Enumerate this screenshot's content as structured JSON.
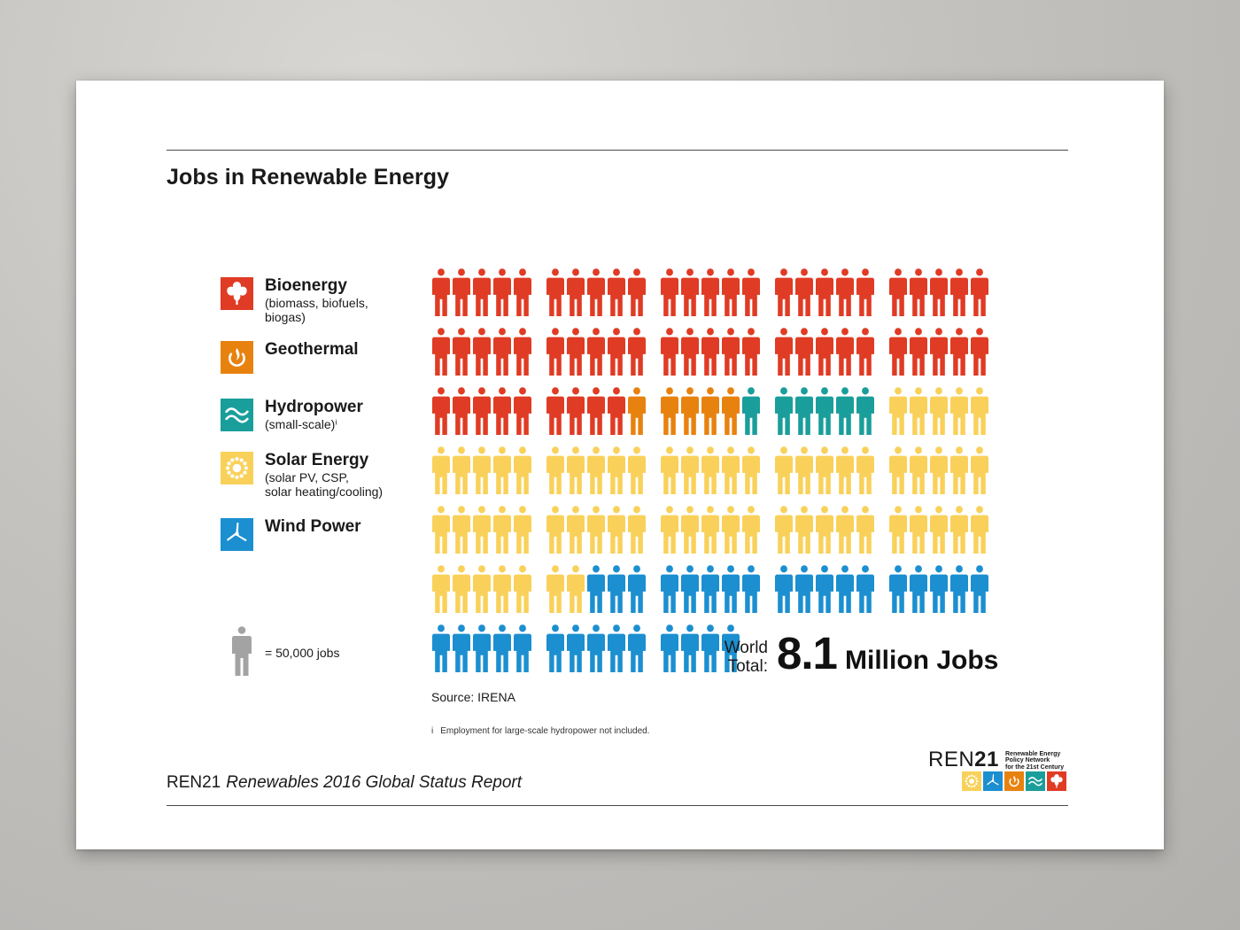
{
  "title": "Jobs in Renewable Energy",
  "legend": [
    {
      "name": "Bioenergy",
      "sub": "(biomass, biofuels,\nbiogas)",
      "color": "#e03b24",
      "icon": "leaf-icon"
    },
    {
      "name": "Geothermal",
      "sub": "",
      "color": "#e8820f",
      "icon": "geothermal-icon"
    },
    {
      "name": "Hydropower",
      "sub": "(small-scale)ⁱ",
      "color": "#1a9e9b",
      "icon": "waves-icon"
    },
    {
      "name": "Solar Energy",
      "sub": "(solar PV, CSP,\nsolar heating/cooling)",
      "color": "#f9d15a",
      "icon": "sun-icon"
    },
    {
      "name": "Wind Power",
      "sub": "",
      "color": "#1b8fd0",
      "icon": "turbine-icon"
    }
  ],
  "scale": {
    "label": "= 50,000 jobs",
    "color": "#a3a3a3"
  },
  "chart_data": {
    "type": "pictogram",
    "unit_jobs": 50000,
    "categories": [
      "Bioenergy",
      "Geothermal",
      "Hydropower",
      "Solar Energy",
      "Wind Power"
    ],
    "values_icons": [
      59,
      5,
      6,
      62,
      32
    ],
    "colors": [
      "#e03b24",
      "#e8820f",
      "#1a9e9b",
      "#f9d15a",
      "#1b8fd0"
    ]
  },
  "total": {
    "label_line1": "World",
    "label_line2": "Total:",
    "value": "8.1",
    "unit": "Million Jobs"
  },
  "source": "Source: IRENA",
  "footnote": {
    "marker": "i",
    "text": "Employment for large-scale hydropower not included."
  },
  "footer": {
    "org": "REN21",
    "report": "Renewables 2016 Global Status Report"
  },
  "logo": {
    "ren": "REN",
    "num": "21",
    "tagline": [
      "Renewable Energy",
      "Policy Network",
      "for the 21st Century"
    ]
  }
}
